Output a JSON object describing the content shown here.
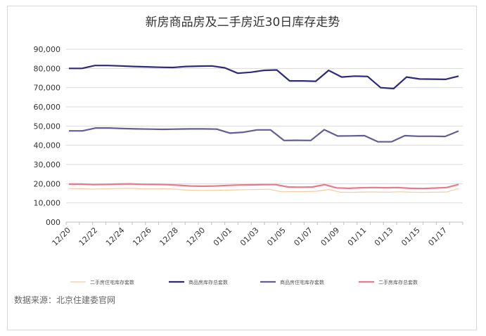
{
  "chart_data": {
    "type": "line",
    "title": "新房商品房及二手房近30日库存走势",
    "source": "数据来源：北京住建委官网",
    "ylim": [
      0,
      90000
    ],
    "yticks": [
      "000",
      "10,000",
      "20,000",
      "30,000",
      "40,000",
      "50,000",
      "60,000",
      "70,000",
      "80,000",
      "90,000"
    ],
    "xtick_labels": [
      "12/20",
      "12/22",
      "12/24",
      "12/26",
      "12/28",
      "12/30",
      "01/01",
      "01/03",
      "01/05",
      "01/07",
      "01/09",
      "01/11",
      "01/13",
      "01/15",
      "01/17"
    ],
    "grid": true,
    "legend_position": "bottom",
    "series": [
      {
        "name": "二手房住宅库存套数",
        "color": "#f8cba0",
        "width": 1.2,
        "values": [
          17500,
          17400,
          17200,
          17300,
          17500,
          17600,
          17400,
          17300,
          17400,
          17200,
          16600,
          16500,
          16500,
          16600,
          16800,
          16900,
          17000,
          17100,
          15800,
          15900,
          15900,
          16100,
          17000,
          15600,
          15500,
          15700,
          15700,
          15600,
          15800,
          15600,
          15500,
          15600,
          15700,
          17500
        ]
      },
      {
        "name": "商品房库存总套数",
        "color": "#2e2a7a",
        "width": 2.2,
        "values": [
          80000,
          80000,
          81500,
          81500,
          81300,
          81000,
          80800,
          80600,
          80500,
          81000,
          81200,
          81300,
          80300,
          77500,
          78000,
          79000,
          79200,
          73500,
          73500,
          73300,
          79000,
          75500,
          76000,
          75800,
          70000,
          69500,
          75500,
          74500,
          74400,
          74300,
          76000
        ]
      },
      {
        "name": "商品房住宅库存套数",
        "color": "#625e93",
        "width": 2.2,
        "values": [
          47500,
          47500,
          49000,
          49000,
          48700,
          48500,
          48400,
          48300,
          48400,
          48500,
          48500,
          48400,
          46300,
          46800,
          48000,
          48000,
          42500,
          42600,
          42500,
          48100,
          44800,
          44900,
          45000,
          41800,
          41800,
          45000,
          44700,
          44700,
          44600,
          47400
        ]
      },
      {
        "name": "二手房库存总套数",
        "color": "#ea7a8a",
        "width": 2.2,
        "values": [
          19800,
          19800,
          19500,
          19600,
          19800,
          19900,
          19700,
          19600,
          19500,
          19200,
          18800,
          18700,
          18800,
          19100,
          19300,
          19400,
          19500,
          19500,
          18300,
          18200,
          18300,
          19500,
          17800,
          17600,
          17900,
          18000,
          17900,
          18000,
          17600,
          17500,
          17700,
          18000,
          19600
        ]
      }
    ]
  }
}
